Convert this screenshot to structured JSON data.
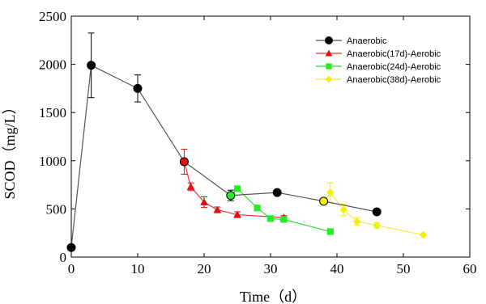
{
  "chart_data": {
    "type": "scatter",
    "xlabel": "Time（d）",
    "ylabel": "SCOD（mg/L）",
    "xlim": [
      0,
      60
    ],
    "ylim": [
      0,
      2500
    ],
    "xticks": [
      "0",
      "10",
      "20",
      "30",
      "40",
      "50",
      "60"
    ],
    "yticks": [
      "0",
      "500",
      "1000",
      "1500",
      "2000",
      "2500"
    ],
    "grid": false,
    "legend_position": "top-right",
    "series": [
      {
        "name": "Anaerobic",
        "color": "#000000",
        "line_color": "#555555",
        "marker": "circle",
        "x": [
          0,
          3,
          10,
          17,
          24,
          31,
          38,
          46
        ],
        "y": [
          100,
          1990,
          1750,
          990,
          640,
          670,
          580,
          470
        ],
        "err": [
          0,
          335,
          140,
          0,
          55,
          20,
          0,
          0
        ]
      },
      {
        "name": "Anaerobic(17d)-Aerobic",
        "color": "#dd1111",
        "line_color": "#ee3333",
        "marker": "triangle",
        "x": [
          17,
          18,
          20,
          22,
          25,
          32
        ],
        "y": [
          990,
          730,
          570,
          490,
          440,
          410
        ],
        "err": [
          130,
          40,
          55,
          30,
          30,
          20
        ]
      },
      {
        "name": "Anaerobic(24d)-Aerobic",
        "color": "#22ee22",
        "line_color": "#33dd33",
        "marker": "square",
        "x": [
          24,
          25,
          28,
          30,
          32,
          39
        ],
        "y": [
          640,
          710,
          510,
          400,
          390,
          265
        ],
        "err": [
          0,
          0,
          0,
          0,
          0,
          0
        ]
      },
      {
        "name": "Anaerobic(38d)-Aerobic",
        "color": "#f0f000",
        "line_color": "#f5e94a",
        "marker": "diamond",
        "x": [
          38,
          39,
          41,
          43,
          46,
          53
        ],
        "y": [
          580,
          670,
          490,
          370,
          330,
          230
        ],
        "err": [
          0,
          100,
          60,
          40,
          30,
          0
        ]
      }
    ]
  }
}
